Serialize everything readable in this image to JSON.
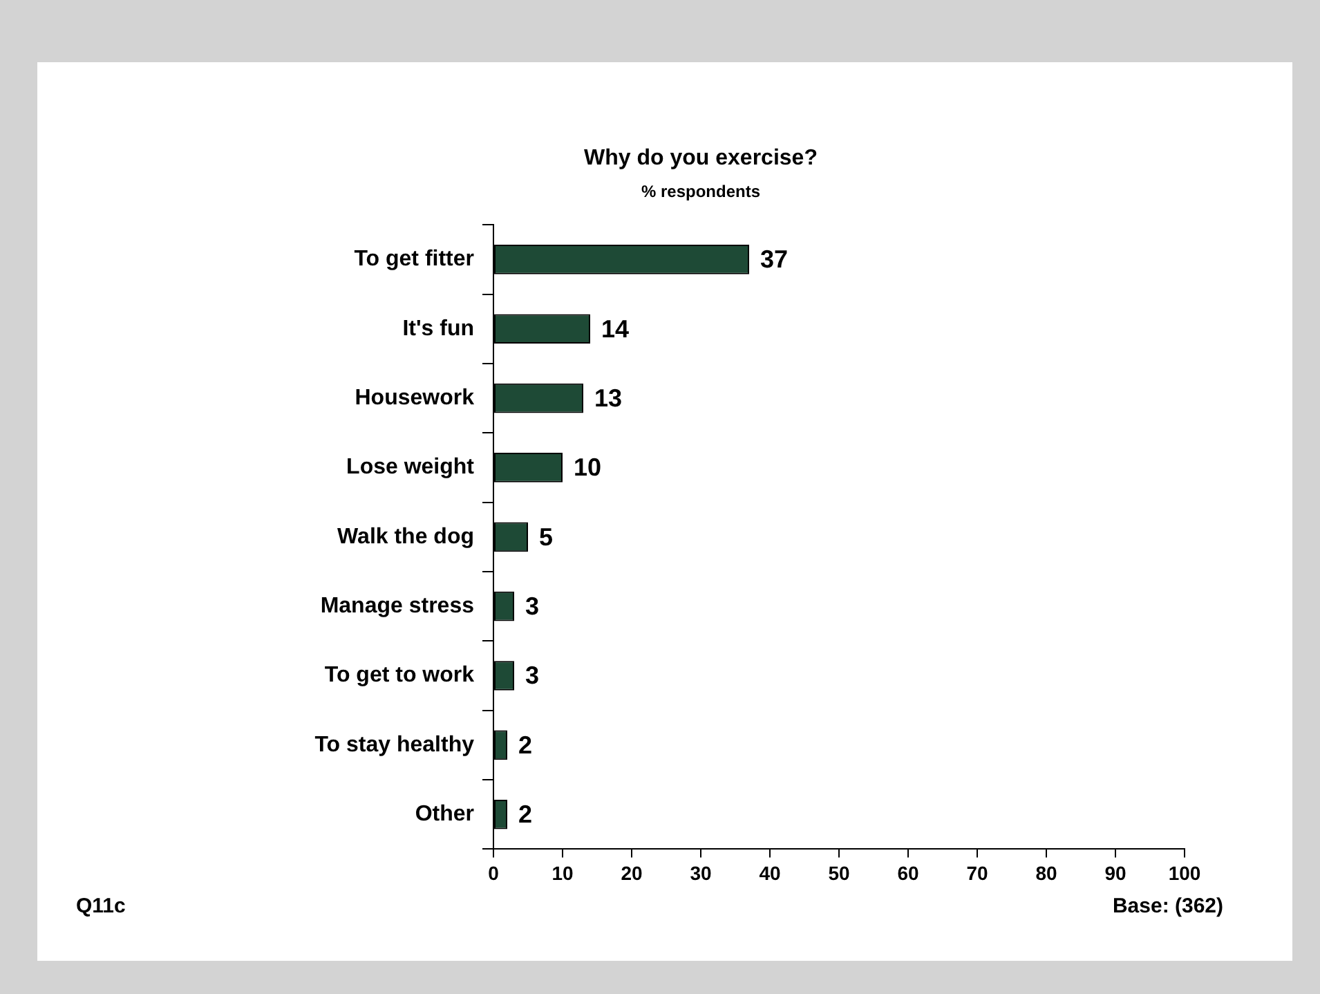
{
  "chart_data": {
    "type": "bar",
    "orientation": "horizontal",
    "title": "Why do you exercise?",
    "subtitle": "% respondents",
    "categories": [
      "To get fitter",
      "It's fun",
      "Housework",
      "Lose weight",
      "Walk the dog",
      "Manage stress",
      "To get to work",
      "To stay healthy",
      "Other"
    ],
    "values": [
      37,
      14,
      13,
      10,
      5,
      3,
      3,
      2,
      2
    ],
    "color": "#1e4a36",
    "xlim": [
      0,
      100
    ],
    "xticks": [
      0,
      10,
      20,
      30,
      40,
      50,
      60,
      70,
      80,
      90,
      100
    ],
    "grid": false,
    "legend": false,
    "data_labels": true,
    "annotations": [
      "Q11c",
      "Base: (362)"
    ]
  }
}
